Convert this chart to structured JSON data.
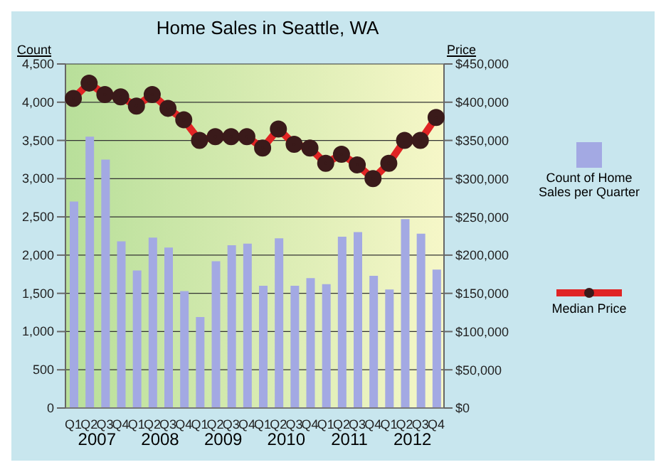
{
  "chart_data": {
    "type": "bar",
    "title": "Home Sales in Seattle, WA",
    "ylabel": "Count",
    "y2label": "Price",
    "categories": [
      "Q1",
      "Q2",
      "Q3",
      "Q4",
      "Q1",
      "Q2",
      "Q3",
      "Q4",
      "Q1",
      "Q2",
      "Q3",
      "Q4",
      "Q1",
      "Q2",
      "Q3",
      "Q4",
      "Q1",
      "Q2",
      "Q3",
      "Q4",
      "Q1",
      "Q2",
      "Q3",
      "Q4"
    ],
    "annotations": [
      "2007",
      "2008",
      "2009",
      "2010",
      "2011",
      "2012"
    ],
    "series": [
      {
        "name": "Count of Home Sales per Quarter",
        "color": "#a3a9e3",
        "values": [
          2700,
          3550,
          3250,
          2180,
          1800,
          2230,
          2100,
          1530,
          1190,
          1920,
          2130,
          2150,
          1600,
          2220,
          1600,
          1700,
          1620,
          2240,
          2300,
          1730,
          1550,
          2470,
          2280,
          1810
        ]
      },
      {
        "name": "Median Price",
        "type": "line",
        "axis": "y2",
        "color": "#e02424",
        "marker": "circle",
        "values": [
          405000,
          425000,
          410000,
          407000,
          395000,
          410000,
          392000,
          377000,
          350000,
          355000,
          355000,
          355000,
          340000,
          365000,
          345000,
          340000,
          320000,
          332000,
          318000,
          300000,
          320000,
          350000,
          350000,
          380000
        ]
      }
    ],
    "ylim": [
      0,
      4500
    ],
    "yticks": [
      0,
      {
        "value": 500,
        "label": "500"
      },
      {
        "value": 1000,
        "label": "1,000"
      },
      {
        "value": 1500,
        "label": "1,500"
      },
      {
        "value": 2000,
        "label": "2,000"
      },
      {
        "value": 2500,
        "label": "2,500"
      },
      {
        "value": 3000,
        "label": "3,000"
      },
      {
        "value": 3500,
        "label": "3,500"
      },
      {
        "value": 4000,
        "label": "4,000"
      },
      {
        "value": 4500,
        "label": "4,500"
      }
    ],
    "y2lim": [
      0,
      450000
    ],
    "y2ticks": [
      {
        "value": 0,
        "label": "$0"
      },
      {
        "value": 50000,
        "label": "$50,000"
      },
      {
        "value": 100000,
        "label": "$100,000"
      },
      {
        "value": 150000,
        "label": "$150,000"
      },
      {
        "value": 200000,
        "label": "$200,000"
      },
      {
        "value": 250000,
        "label": "$250,000"
      },
      {
        "value": 300000,
        "label": "$300,000"
      },
      {
        "value": 350000,
        "label": "$350,000"
      },
      {
        "value": 400000,
        "label": "$400,000"
      },
      {
        "value": 450000,
        "label": "$450,000"
      }
    ],
    "grid": "y",
    "legend": "right"
  }
}
